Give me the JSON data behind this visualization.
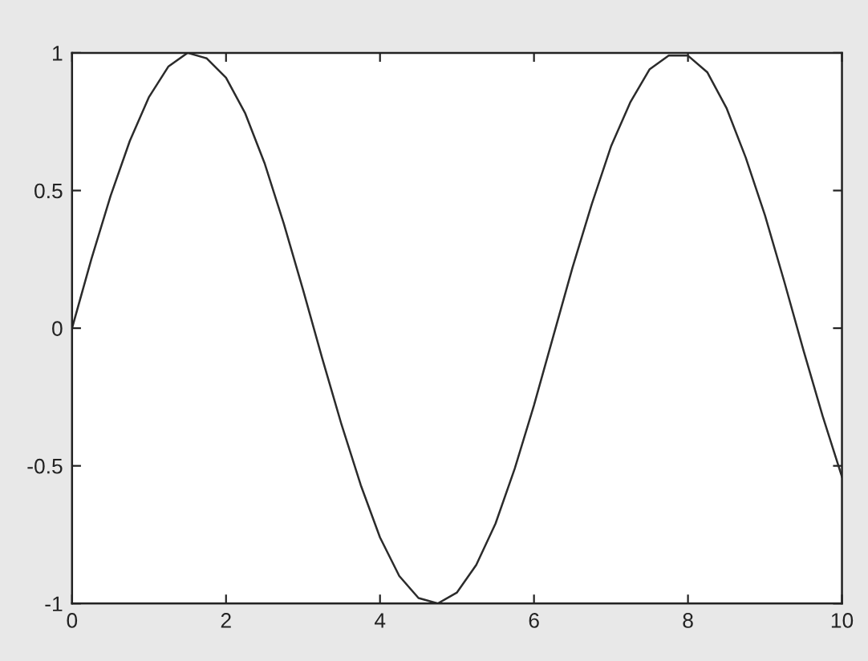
{
  "chart_data": {
    "type": "line",
    "x": [
      0,
      0.25,
      0.5,
      0.75,
      1,
      1.25,
      1.5,
      1.75,
      2,
      2.25,
      2.5,
      2.75,
      3,
      3.25,
      3.5,
      3.75,
      4,
      4.25,
      4.5,
      4.75,
      5,
      5.25,
      5.5,
      5.75,
      6,
      6.25,
      6.5,
      6.75,
      7,
      7.25,
      7.5,
      7.75,
      8,
      8.25,
      8.5,
      8.75,
      9,
      9.25,
      9.5,
      9.75,
      10
    ],
    "series": [
      {
        "color": "#2b2b2b",
        "values": [
          0,
          0.25,
          0.48,
          0.68,
          0.84,
          0.95,
          1.0,
          0.98,
          0.91,
          0.78,
          0.6,
          0.38,
          0.14,
          -0.11,
          -0.35,
          -0.57,
          -0.76,
          -0.9,
          -0.98,
          -1.0,
          -0.96,
          -0.86,
          -0.71,
          -0.51,
          -0.28,
          -0.03,
          0.22,
          0.45,
          0.66,
          0.82,
          0.94,
          0.99,
          0.99,
          0.93,
          0.8,
          0.62,
          0.41,
          0.17,
          -0.08,
          -0.32,
          -0.54
        ]
      }
    ],
    "xlim": [
      0,
      10
    ],
    "ylim": [
      -1,
      1
    ],
    "xticks": [
      0,
      2,
      4,
      6,
      8,
      10
    ],
    "yticks": [
      -1,
      -0.5,
      0,
      0.5,
      1
    ],
    "grid": false,
    "marker": "none",
    "line_style": "solid"
  }
}
